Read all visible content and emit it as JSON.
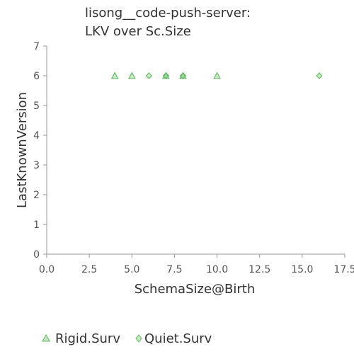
{
  "chart_data": {
    "type": "scatter",
    "title_lines": [
      "lisong__code-push-server:",
      "LKV over Sc.Size"
    ],
    "xlabel": "SchemaSize@Birth",
    "ylabel": "LastKnownVersion",
    "xlim": [
      0,
      17.5
    ],
    "ylim": [
      0,
      7
    ],
    "x_ticks": [
      "0.0",
      "2.5",
      "5.0",
      "7.5",
      "10.0",
      "12.5",
      "15.0",
      "17.5"
    ],
    "y_ticks": [
      "0",
      "1",
      "2",
      "3",
      "4",
      "5",
      "6",
      "7"
    ],
    "grid": false,
    "legend_position": "bottom-left",
    "series": [
      {
        "name": "Rigid.Surv",
        "marker": "triangle",
        "color": "#5cb85c",
        "points": [
          [
            4,
            6
          ],
          [
            5,
            6
          ],
          [
            7,
            6
          ],
          [
            8,
            6
          ],
          [
            10,
            6
          ]
        ]
      },
      {
        "name": "Quiet.Surv",
        "marker": "diamond",
        "color": "#5cb85c",
        "points": [
          [
            6,
            6
          ],
          [
            7,
            6
          ],
          [
            8,
            6
          ],
          [
            16,
            6
          ]
        ]
      }
    ]
  }
}
